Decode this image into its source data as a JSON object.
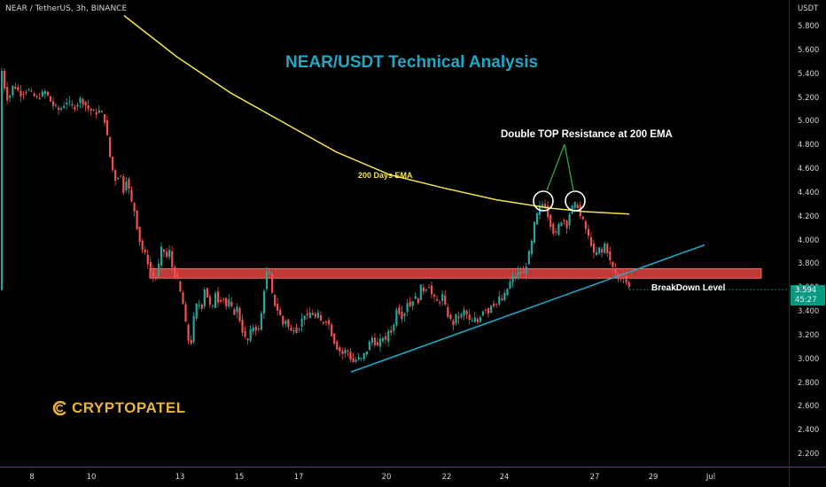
{
  "header": {
    "symbol_info": "NEAR / TetherUS, 3h, BINANCE"
  },
  "title": "NEAR/USDT Technical Analysis",
  "annotations": {
    "double_top": "Double TOP Resistance at 200 EMA",
    "ema": "200 Days EMA",
    "breakdown": "BreakDown Level"
  },
  "logo": {
    "text": "CRYPTOPATEL",
    "color": "#e9b43a"
  },
  "price_axis": {
    "unit": "USDT",
    "ticks": [
      "5.800",
      "5.600",
      "5.400",
      "5.200",
      "5.000",
      "4.800",
      "4.600",
      "4.400",
      "4.200",
      "4.000",
      "3.800",
      "3.600",
      "3.400",
      "3.200",
      "3.000",
      "2.800",
      "2.600",
      "2.400",
      "2.200"
    ],
    "current_price": "3.594",
    "countdown": "45:27"
  },
  "time_axis": {
    "ticks": [
      "8",
      "10",
      "13",
      "15",
      "17",
      "20",
      "22",
      "24",
      "27",
      "29",
      "Jul"
    ]
  },
  "colors": {
    "up": "#26a69a",
    "down": "#ef5350",
    "ema": "#f3e34a",
    "trendline": "#1fa7c4",
    "zone": "#e0433f",
    "axis_border": "#7b2a9e"
  },
  "chart_data": {
    "type": "candlestick",
    "title": "NEAR/USDT Technical Analysis",
    "symbol": "NEAR / TetherUS",
    "interval": "3h",
    "exchange": "BINANCE",
    "ylim": [
      2.2,
      5.9
    ],
    "x_ticks": [
      "8",
      "10",
      "13",
      "15",
      "17",
      "20",
      "22",
      "24",
      "27",
      "29",
      "Jul"
    ],
    "last_price": 3.594,
    "price_path": [
      [
        0,
        5.48
      ],
      [
        4,
        5.3
      ],
      [
        8,
        5.18
      ],
      [
        14,
        5.32
      ],
      [
        22,
        5.24
      ],
      [
        30,
        5.28
      ],
      [
        40,
        5.2
      ],
      [
        50,
        5.26
      ],
      [
        58,
        5.15
      ],
      [
        66,
        5.1
      ],
      [
        74,
        5.18
      ],
      [
        82,
        5.12
      ],
      [
        90,
        5.2
      ],
      [
        98,
        5.12
      ],
      [
        106,
        5.08
      ],
      [
        112,
        5.1
      ],
      [
        118,
        5.0
      ],
      [
        122,
        4.75
      ],
      [
        126,
        4.6
      ],
      [
        130,
        4.5
      ],
      [
        134,
        4.6
      ],
      [
        138,
        4.42
      ],
      [
        142,
        4.55
      ],
      [
        146,
        4.35
      ],
      [
        150,
        4.28
      ],
      [
        154,
        4.1
      ],
      [
        158,
        3.95
      ],
      [
        162,
        3.9
      ],
      [
        166,
        3.82
      ],
      [
        170,
        3.72
      ],
      [
        174,
        3.68
      ],
      [
        178,
        3.8
      ],
      [
        182,
        3.98
      ],
      [
        186,
        3.85
      ],
      [
        190,
        3.92
      ],
      [
        194,
        3.75
      ],
      [
        198,
        3.7
      ],
      [
        202,
        3.58
      ],
      [
        206,
        3.45
      ],
      [
        210,
        3.2
      ],
      [
        214,
        3.12
      ],
      [
        218,
        3.38
      ],
      [
        222,
        3.5
      ],
      [
        226,
        3.42
      ],
      [
        230,
        3.62
      ],
      [
        234,
        3.5
      ],
      [
        238,
        3.4
      ],
      [
        242,
        3.58
      ],
      [
        246,
        3.48
      ],
      [
        250,
        3.55
      ],
      [
        254,
        3.45
      ],
      [
        258,
        3.5
      ],
      [
        262,
        3.38
      ],
      [
        266,
        3.45
      ],
      [
        270,
        3.32
      ],
      [
        274,
        3.2
      ],
      [
        278,
        3.15
      ],
      [
        282,
        3.25
      ],
      [
        286,
        3.3
      ],
      [
        290,
        3.22
      ],
      [
        294,
        3.4
      ],
      [
        298,
        3.68
      ],
      [
        302,
        3.78
      ],
      [
        306,
        3.55
      ],
      [
        310,
        3.45
      ],
      [
        314,
        3.4
      ],
      [
        318,
        3.3
      ],
      [
        322,
        3.35
      ],
      [
        326,
        3.22
      ],
      [
        330,
        3.28
      ],
      [
        334,
        3.25
      ],
      [
        338,
        3.3
      ],
      [
        342,
        3.4
      ],
      [
        346,
        3.35
      ],
      [
        350,
        3.42
      ],
      [
        354,
        3.35
      ],
      [
        358,
        3.38
      ],
      [
        362,
        3.3
      ],
      [
        366,
        3.35
      ],
      [
        370,
        3.3
      ],
      [
        374,
        3.2
      ],
      [
        378,
        3.12
      ],
      [
        382,
        3.08
      ],
      [
        386,
        3.05
      ],
      [
        390,
        3.1
      ],
      [
        394,
        3.02
      ],
      [
        398,
        2.98
      ],
      [
        402,
        3.02
      ],
      [
        406,
        3.0
      ],
      [
        410,
        3.05
      ],
      [
        414,
        3.1
      ],
      [
        418,
        3.2
      ],
      [
        422,
        3.15
      ],
      [
        426,
        3.1
      ],
      [
        430,
        3.22
      ],
      [
        434,
        3.15
      ],
      [
        438,
        3.28
      ],
      [
        442,
        3.22
      ],
      [
        446,
        3.45
      ],
      [
        450,
        3.4
      ],
      [
        454,
        3.35
      ],
      [
        458,
        3.5
      ],
      [
        462,
        3.45
      ],
      [
        466,
        3.55
      ],
      [
        470,
        3.48
      ],
      [
        474,
        3.62
      ],
      [
        478,
        3.58
      ],
      [
        482,
        3.65
      ],
      [
        486,
        3.55
      ],
      [
        490,
        3.5
      ],
      [
        494,
        3.48
      ],
      [
        498,
        3.55
      ],
      [
        502,
        3.42
      ],
      [
        506,
        3.35
      ],
      [
        510,
        3.3
      ],
      [
        514,
        3.38
      ],
      [
        518,
        3.35
      ],
      [
        522,
        3.42
      ],
      [
        526,
        3.38
      ],
      [
        530,
        3.3
      ],
      [
        534,
        3.35
      ],
      [
        538,
        3.32
      ],
      [
        542,
        3.4
      ],
      [
        546,
        3.45
      ],
      [
        550,
        3.4
      ],
      [
        554,
        3.5
      ],
      [
        558,
        3.45
      ],
      [
        562,
        3.52
      ],
      [
        566,
        3.5
      ],
      [
        570,
        3.58
      ],
      [
        574,
        3.65
      ],
      [
        578,
        3.7
      ],
      [
        582,
        3.72
      ],
      [
        586,
        3.75
      ],
      [
        590,
        3.72
      ],
      [
        594,
        3.85
      ],
      [
        598,
        3.95
      ],
      [
        602,
        4.15
      ],
      [
        606,
        4.25
      ],
      [
        610,
        4.32
      ],
      [
        614,
        4.3
      ],
      [
        618,
        4.2
      ],
      [
        622,
        4.1
      ],
      [
        626,
        4.05
      ],
      [
        630,
        4.15
      ],
      [
        634,
        4.2
      ],
      [
        638,
        4.12
      ],
      [
        642,
        4.25
      ],
      [
        646,
        4.3
      ],
      [
        650,
        4.32
      ],
      [
        654,
        4.2
      ],
      [
        658,
        4.15
      ],
      [
        662,
        4.05
      ],
      [
        666,
        3.98
      ],
      [
        670,
        3.85
      ],
      [
        674,
        3.95
      ],
      [
        678,
        3.9
      ],
      [
        682,
        4.0
      ],
      [
        686,
        3.85
      ],
      [
        690,
        3.78
      ],
      [
        694,
        3.72
      ],
      [
        698,
        3.68
      ],
      [
        702,
        3.72
      ],
      [
        706,
        3.65
      ],
      [
        710,
        3.59
      ]
    ],
    "overlays": {
      "ema_200": [
        [
          140,
          5.9
        ],
        [
          200,
          5.55
        ],
        [
          260,
          5.25
        ],
        [
          320,
          5.0
        ],
        [
          380,
          4.75
        ],
        [
          440,
          4.56
        ],
        [
          500,
          4.45
        ],
        [
          560,
          4.35
        ],
        [
          620,
          4.28
        ],
        [
          660,
          4.25
        ],
        [
          710,
          4.23
        ]
      ],
      "trendline": [
        [
          396,
          2.9
        ],
        [
          795,
          3.97
        ]
      ],
      "resistance_zone": [
        3.69,
        3.77
      ]
    },
    "annotations": [
      "Double TOP Resistance at 200 EMA",
      "200 Days EMA",
      "BreakDown Level"
    ]
  }
}
